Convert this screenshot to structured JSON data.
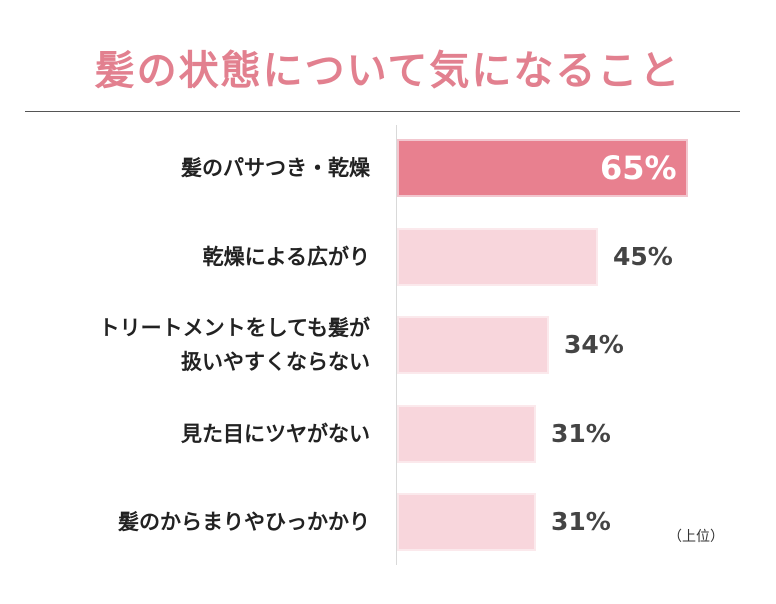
{
  "chart_data": {
    "type": "bar",
    "orientation": "horizontal",
    "title": "髪の状態について気になること",
    "categories": [
      [
        "髪のパサつき・乾燥"
      ],
      [
        "乾燥による広がり"
      ],
      [
        "トリートメントをしても髪が",
        "扱いやすくならない"
      ],
      [
        "見た目にツヤがない"
      ],
      [
        "髪のからまりやひっかかり"
      ]
    ],
    "values": [
      65,
      45,
      34,
      31,
      31
    ],
    "value_labels": [
      "65%",
      "45%",
      "34%",
      "31%",
      "31%"
    ],
    "xlim": [
      0,
      65
    ],
    "note": "（上位）",
    "colors": {
      "highlight": "#e8808f",
      "normal": "#f8d6dc",
      "title": "#e2808f"
    }
  }
}
